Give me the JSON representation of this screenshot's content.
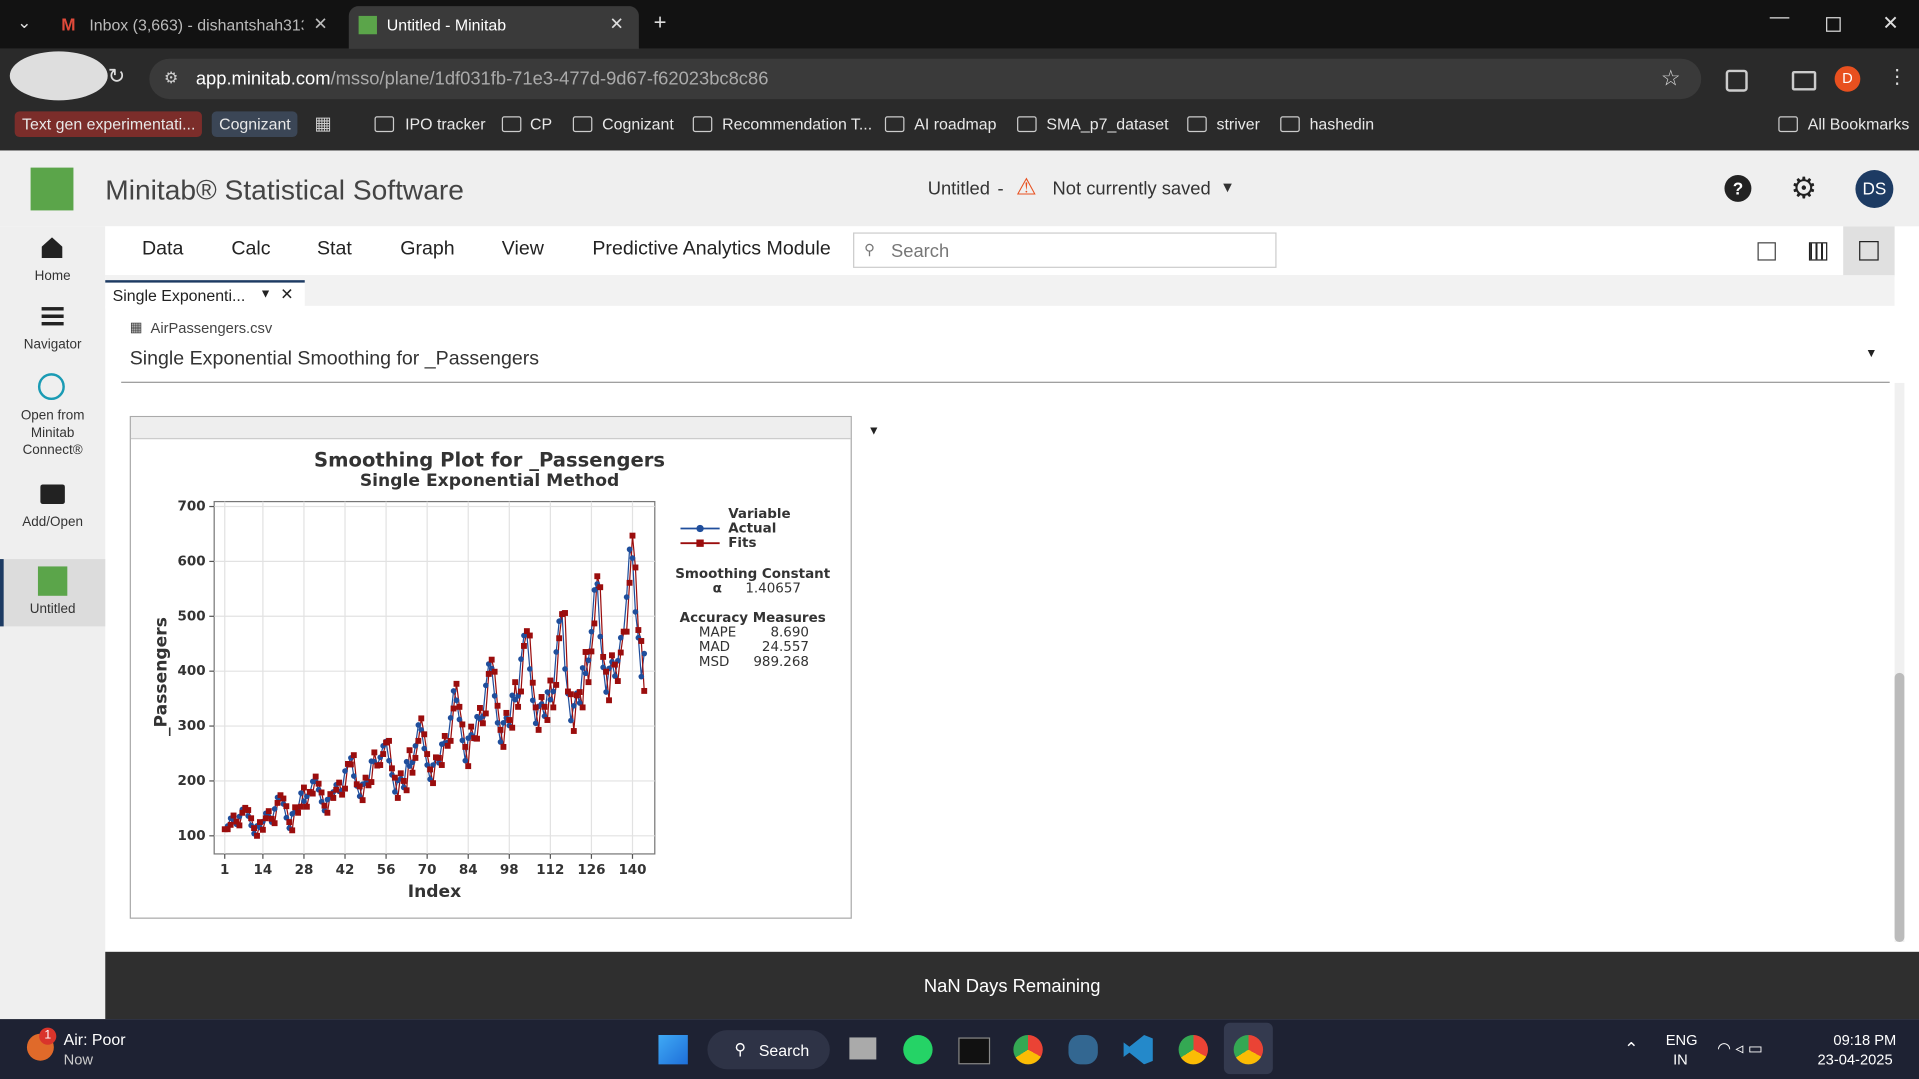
{
  "browser": {
    "tabs": [
      "Inbox (3,663) - dishantshah313",
      "Untitled - Minitab"
    ],
    "url_host": "app.minitab.com",
    "url_path": "/msso/plane/1df031fb-71e3-477d-9d67-f62023bc8c86",
    "profile": "D",
    "bookmarks": [
      "Text gen experimentati...",
      "Cognizant",
      "IPO tracker",
      "CP",
      "Cognizant",
      "Recommendation T...",
      "AI roadmap",
      "SMA_p7_dataset",
      "striver",
      "hashedin"
    ],
    "all_bookmarks": "All Bookmarks"
  },
  "app": {
    "name": "Minitab® Statistical Software",
    "project": "Untitled",
    "separator": "-",
    "save_status": "Not currently saved",
    "user": "DS",
    "menu": [
      "Data",
      "Calc",
      "Stat",
      "Graph",
      "View",
      "Predictive Analytics Module"
    ],
    "search_placeholder": "Search",
    "sidebar": [
      "Home",
      "Navigator",
      "Open from Minitab Connect®",
      "Add/Open",
      "Untitled"
    ],
    "output_tab": "Single Exponenti...",
    "file": "AirPassengers.csv",
    "output_title": "Single Exponential Smoothing for _Passengers",
    "footer": "NaN Days Remaining"
  },
  "taskbar": {
    "weather_badge": "1",
    "weather": "Air: Poor",
    "weather_time": "Now",
    "search": "Search",
    "lang": "ENG",
    "region": "IN",
    "time": "09:18 PM",
    "date": "23-04-2025"
  },
  "chart_data": {
    "type": "line",
    "title": "Smoothing Plot for _Passengers",
    "subtitle": "Single Exponential Method",
    "x_label": "Index",
    "y_label": "_Passengers",
    "grid": true,
    "legend_title": "Variable",
    "x": [
      1,
      2,
      3,
      4,
      5,
      6,
      7,
      8,
      9,
      10,
      11,
      12,
      13,
      14,
      15,
      16,
      17,
      18,
      19,
      20,
      21,
      22,
      23,
      24,
      25,
      26,
      27,
      28,
      29,
      30,
      31,
      32,
      33,
      34,
      35,
      36,
      37,
      38,
      39,
      40,
      41,
      42,
      43,
      44,
      45,
      46,
      47,
      48,
      49,
      50,
      51,
      52,
      53,
      54,
      55,
      56,
      57,
      58,
      59,
      60,
      61,
      62,
      63,
      64,
      65,
      66,
      67,
      68,
      69,
      70,
      71,
      72,
      73,
      74,
      75,
      76,
      77,
      78,
      79,
      80,
      81,
      82,
      83,
      84,
      85,
      86,
      87,
      88,
      89,
      90,
      91,
      92,
      93,
      94,
      95,
      96,
      97,
      98,
      99,
      100,
      101,
      102,
      103,
      104,
      105,
      106,
      107,
      108,
      109,
      110,
      111,
      112,
      113,
      114,
      115,
      116,
      117,
      118,
      119,
      120,
      121,
      122,
      123,
      124,
      125,
      126,
      127,
      128,
      129,
      130,
      131,
      132,
      133,
      134,
      135,
      136,
      137,
      138,
      139,
      140,
      141,
      142,
      143,
      144
    ],
    "series": [
      {
        "name": "Actual",
        "color": "#1f4e9c",
        "marker": "circle",
        "values": [
          112,
          118,
          132,
          129,
          121,
          135,
          148,
          148,
          136,
          119,
          104,
          118,
          115,
          126,
          141,
          135,
          125,
          149,
          170,
          170,
          158,
          133,
          114,
          140,
          145,
          150,
          178,
          163,
          172,
          178,
          199,
          199,
          184,
          162,
          146,
          166,
          171,
          180,
          193,
          181,
          183,
          218,
          230,
          242,
          209,
          191,
          172,
          194,
          196,
          196,
          236,
          235,
          229,
          243,
          264,
          272,
          237,
          211,
          180,
          201,
          204,
          188,
          235,
          227,
          234,
          264,
          302,
          293,
          259,
          229,
          203,
          229,
          242,
          233,
          267,
          269,
          270,
          315,
          364,
          347,
          312,
          274,
          237,
          278,
          284,
          277,
          317,
          313,
          318,
          374,
          413,
          405,
          355,
          306,
          271,
          306,
          315,
          301,
          356,
          348,
          355,
          422,
          465,
          467,
          404,
          347,
          305,
          336,
          340,
          318,
          362,
          348,
          363,
          435,
          491,
          505,
          404,
          359,
          310,
          337,
          360,
          342,
          406,
          396,
          420,
          472,
          548,
          559,
          463,
          407,
          362,
          405,
          417,
          391,
          419,
          461,
          472,
          535,
          622,
          606,
          508,
          461,
          390,
          432
        ]
      },
      {
        "name": "Fits",
        "color": "#9b0d0d",
        "marker": "square",
        "values": [
          112,
          112,
          120,
          137,
          126,
          119,
          142,
          151,
          147,
          132,
          114,
          100,
          125,
          111,
          132,
          145,
          131,
          123,
          160,
          174,
          168,
          154,
          125,
          110,
          152,
          142,
          153,
          188,
          153,
          180,
          177,
          208,
          195,
          179,
          155,
          142,
          176,
          169,
          184,
          197,
          175,
          186,
          231,
          230,
          247,
          194,
          190,
          165,
          206,
          192,
          198,
          252,
          228,
          229,
          249,
          270,
          273,
          223,
          206,
          169,
          214,
          200,
          183,
          256,
          215,
          242,
          273,
          314,
          285,
          249,
          221,
          196,
          243,
          242,
          229,
          282,
          264,
          273,
          332,
          377,
          335,
          303,
          262,
          227,
          299,
          278,
          277,
          333,
          305,
          323,
          395,
          421,
          399,
          337,
          293,
          262,
          324,
          311,
          297,
          380,
          335,
          363,
          446,
          473,
          465,
          379,
          334,
          293,
          353,
          335,
          311,
          383,
          334,
          375,
          460,
          504,
          506,
          363,
          358,
          291,
          356,
          362,
          334,
          435,
          380,
          436,
          487,
          573,
          553,
          426,
          399,
          347,
          429,
          412,
          382,
          434,
          472,
          472,
          561,
          647,
          589,
          475,
          455,
          364
        ]
      }
    ],
    "xlim": [
      -2.6,
      147.6
    ],
    "xticks": [
      1,
      14,
      28,
      42,
      56,
      70,
      84,
      98,
      112,
      126,
      140
    ],
    "ylim": [
      67,
      709
    ],
    "yticks": [
      100,
      200,
      300,
      400,
      500,
      600,
      700
    ],
    "smoothing_constant": {
      "label": "Smoothing Constant",
      "symbol": "α",
      "value": "1.40657"
    },
    "accuracy_measures": {
      "title": "Accuracy Measures",
      "items": [
        {
          "name": "MAPE",
          "value": "8.690"
        },
        {
          "name": "MAD",
          "value": "24.557"
        },
        {
          "name": "MSD",
          "value": "989.268"
        }
      ]
    }
  }
}
